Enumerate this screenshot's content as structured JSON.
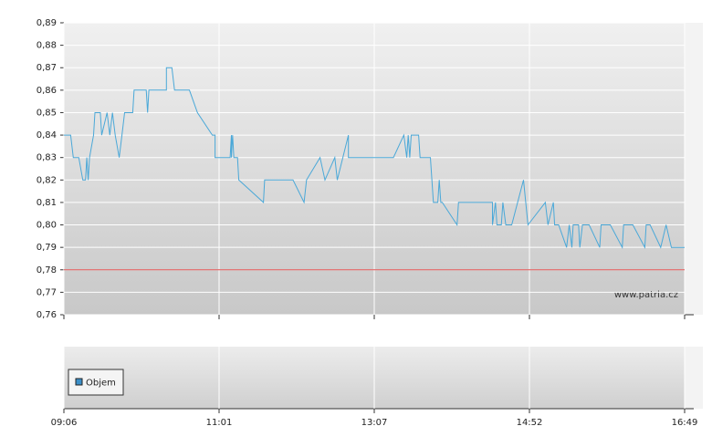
{
  "chart_data": [
    {
      "type": "line",
      "ylim": [
        0.76,
        0.89
      ],
      "yticks": [
        {
          "value": 0.76,
          "label": "0,76"
        },
        {
          "value": 0.77,
          "label": "0,77"
        },
        {
          "value": 0.78,
          "label": "0,78"
        },
        {
          "value": 0.79,
          "label": "0,79"
        },
        {
          "value": 0.8,
          "label": "0,80"
        },
        {
          "value": 0.81,
          "label": "0,81"
        },
        {
          "value": 0.82,
          "label": "0,82"
        },
        {
          "value": 0.83,
          "label": "0,83"
        },
        {
          "value": 0.84,
          "label": "0,84"
        },
        {
          "value": 0.85,
          "label": "0,85"
        },
        {
          "value": 0.86,
          "label": "0,86"
        },
        {
          "value": 0.87,
          "label": "0,87"
        },
        {
          "value": 0.88,
          "label": "0,88"
        },
        {
          "value": 0.89,
          "label": "0,89"
        }
      ],
      "grid": true,
      "reference_line": {
        "value": 0.78,
        "color": "#e05050"
      },
      "watermark": "www.patria.cz",
      "color": "#4aa8d8",
      "x": [
        546,
        551,
        553,
        557,
        560,
        562,
        563,
        564,
        565,
        568,
        569,
        573,
        574,
        578,
        580,
        582,
        584,
        587,
        589,
        591,
        597,
        598,
        607,
        608,
        609,
        622,
        622,
        626,
        628,
        639,
        645,
        656,
        658,
        658,
        670,
        671,
        671,
        672,
        673,
        676,
        677,
        697,
        698,
        721,
        730,
        732,
        743,
        747,
        755,
        757,
        766,
        766,
        800,
        807,
        809,
        810,
        811,
        812,
        817,
        818,
        825,
        827,
        830,
        831,
        832,
        833,
        843,
        844,
        867,
        867,
        869,
        870,
        873,
        874,
        876,
        880,
        888,
        891,
        904,
        906,
        910,
        911,
        914,
        920,
        922,
        924,
        925,
        929,
        930,
        932,
        937,
        945,
        946,
        953,
        962,
        963,
        970,
        979,
        980,
        983,
        991,
        995,
        999,
        1009
      ],
      "values": [
        0.84,
        0.84,
        0.83,
        0.83,
        0.82,
        0.82,
        0.83,
        0.82,
        0.83,
        0.84,
        0.85,
        0.85,
        0.84,
        0.85,
        0.84,
        0.85,
        0.84,
        0.83,
        0.84,
        0.85,
        0.85,
        0.86,
        0.86,
        0.85,
        0.86,
        0.86,
        0.87,
        0.87,
        0.86,
        0.86,
        0.85,
        0.84,
        0.84,
        0.83,
        0.83,
        0.84,
        0.83,
        0.84,
        0.83,
        0.83,
        0.82,
        0.81,
        0.82,
        0.82,
        0.81,
        0.82,
        0.83,
        0.82,
        0.83,
        0.82,
        0.84,
        0.83,
        0.83,
        0.84,
        0.83,
        0.84,
        0.83,
        0.84,
        0.84,
        0.83,
        0.83,
        0.81,
        0.81,
        0.82,
        0.81,
        0.81,
        0.8,
        0.81,
        0.81,
        0.8,
        0.81,
        0.8,
        0.8,
        0.81,
        0.8,
        0.8,
        0.82,
        0.8,
        0.81,
        0.8,
        0.81,
        0.8,
        0.8,
        0.79,
        0.8,
        0.79,
        0.8,
        0.8,
        0.79,
        0.8,
        0.8,
        0.79,
        0.8,
        0.8,
        0.79,
        0.8,
        0.8,
        0.79,
        0.8,
        0.8,
        0.79,
        0.8,
        0.79,
        0.79
      ]
    },
    {
      "type": "bar",
      "series": [
        {
          "name": "Objem",
          "color": "#3a8fc8",
          "values": []
        }
      ],
      "xlim": [
        546,
        1009
      ],
      "xticks": [
        {
          "value": 546,
          "label": "09:06"
        },
        {
          "value": 661,
          "label": "11:01"
        },
        {
          "value": 787,
          "label": "13:07"
        },
        {
          "value": 892,
          "label": "14:52"
        },
        {
          "value": 1009,
          "label": "16:49"
        }
      ]
    }
  ]
}
